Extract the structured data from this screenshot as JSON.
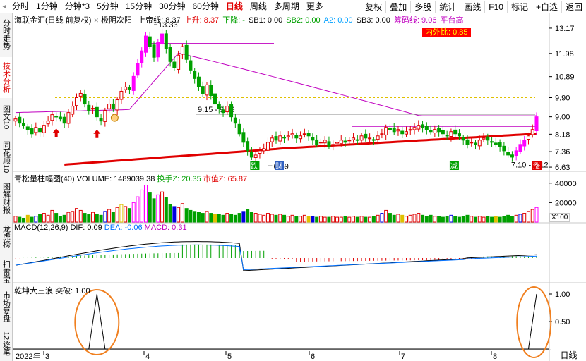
{
  "toolbar": {
    "left_items": [
      "分时",
      "1分钟",
      "分钟*3",
      "5分钟",
      "15分钟",
      "30分钟",
      "60分钟",
      "日线",
      "周线",
      "多周期",
      "更多"
    ],
    "active_item": "日线",
    "right_items": [
      "复权",
      "叠加",
      "多股",
      "统计",
      "画线",
      "F10",
      "标记",
      "+自选",
      "返回"
    ]
  },
  "left_tabs": [
    {
      "label": "分时走势",
      "active": false
    },
    {
      "label": "技术分析",
      "active": true
    },
    {
      "label": "图文10",
      "active": false
    },
    {
      "label": "同花顺10",
      "active": false
    },
    {
      "label": "图解财报",
      "active": false
    },
    {
      "label": "龙虎榜",
      "active": false
    },
    {
      "label": "扫雷宝",
      "active": false
    },
    {
      "label": "市场复盘",
      "active": false
    },
    {
      "label": "12逐笔",
      "active": false
    }
  ],
  "main_panel": {
    "title": "海联金汇(日线 前复权)",
    "indicator_name": "极阴次阳",
    "items": [
      {
        "label": "上帝线: 8.37",
        "color": "#000000"
      },
      {
        "label": "上升: 8.37",
        "color": "#e00000"
      },
      {
        "label": "下降: -",
        "color": "#00a000"
      },
      {
        "label": "SB1: 0.00",
        "color": "#000000"
      },
      {
        "label": "SB2: 0.00",
        "color": "#00a000"
      },
      {
        "label": "A2: 0.00",
        "color": "#00a0ff"
      },
      {
        "label": "SB3: 0.00",
        "color": "#000000"
      },
      {
        "label": "筹码线: 9.06",
        "color": "#c000c0"
      },
      {
        "label": "平台高",
        "color": "#c000c0"
      }
    ],
    "inout_label": "内外比: 0.85",
    "price_ticks": [
      "13.17",
      "11.98",
      "10.89",
      "9.90",
      "9.00",
      "8.18",
      "7.36",
      "6.63"
    ],
    "annotations": {
      "high": "13.33",
      "range1": "9.15 - 9.09",
      "low": "6.69",
      "range2": "7.10 - 7.12",
      "tag_die": "跌",
      "tag_cai": "财",
      "tag_jian": "减",
      "tag_zhang": "涨"
    }
  },
  "volume_panel": {
    "title": "青松量柱幅图(40)",
    "volume": "VOLUME: 1489039.38",
    "turnover": "换手Z: 20.35",
    "market_value": "市值Z: 65.87",
    "ticks": [
      "40000",
      "20000"
    ],
    "unit": "X100"
  },
  "macd_panel": {
    "title": "MACD(12,26,9)",
    "dif": "DIF: 0.09",
    "dea": "DEA: -0.06",
    "macd": "MACD: 0.31"
  },
  "wave_panel": {
    "title": "乾坤大三浪",
    "value": "突破: 1.00",
    "ticks": [
      "1.00",
      "0.50"
    ]
  },
  "x_axis": {
    "labels": [
      "2022年",
      "3",
      "4",
      "5",
      "6",
      "7",
      "8"
    ]
  },
  "bottom_right": "日线",
  "chart_data": {
    "type": "candlestick",
    "title": "海联金汇(日线 前复权)",
    "y_range": [
      6.5,
      13.4
    ],
    "y_ticks": [
      13.17,
      11.98,
      10.89,
      9.9,
      9.0,
      8.18,
      7.36,
      6.63
    ],
    "x_labels": [
      "2022年",
      "3",
      "4",
      "5",
      "6",
      "7",
      "8"
    ],
    "marked_high": 13.33,
    "marked_low": 6.69,
    "closes": [
      8.9,
      8.7,
      8.6,
      8.4,
      8.2,
      8.5,
      8.3,
      8.6,
      8.8,
      9.1,
      9.0,
      8.9,
      8.7,
      9.2,
      9.5,
      9.9,
      10.1,
      9.6,
      9.3,
      9.4,
      9.0,
      8.8,
      9.3,
      9.6,
      9.4,
      9.8,
      10.2,
      10.4,
      10.3,
      10.9,
      11.5,
      12.1,
      12.8,
      12.3,
      11.8,
      12.5,
      12.9,
      12.2,
      11.6,
      11.3,
      11.9,
      12.3,
      11.7,
      11.2,
      10.8,
      10.4,
      10.1,
      10.5,
      10.0,
      9.6,
      9.4,
      9.2,
      9.5,
      9.0,
      8.7,
      8.2,
      7.8,
      7.4,
      7.1,
      7.2,
      7.4,
      7.5,
      7.8,
      8.0,
      7.9,
      8.1,
      8.0,
      8.1,
      8.2,
      8.0,
      8.1,
      8.2,
      8.1,
      7.9,
      7.7,
      7.8,
      7.9,
      7.6,
      7.7,
      7.8,
      7.9,
      7.8,
      7.9,
      8.0,
      7.9,
      8.1,
      8.0,
      8.0,
      7.9,
      8.1,
      8.2,
      8.5,
      8.4,
      8.3,
      8.4,
      8.2,
      8.3,
      8.4,
      8.5,
      8.6,
      8.5,
      8.4,
      8.3,
      8.4,
      8.3,
      8.2,
      8.1,
      8.3,
      8.2,
      8.1,
      7.9,
      7.7,
      7.8,
      7.7,
      7.9,
      8.0,
      7.9,
      7.8,
      7.7,
      7.6,
      7.4,
      7.2,
      7.1,
      7.4,
      7.7,
      7.9,
      8.1,
      8.4,
      9.0
    ],
    "volumes": [
      6,
      5,
      4,
      7,
      5,
      6,
      8,
      9,
      7,
      12,
      9,
      6,
      7,
      10,
      11,
      14,
      12,
      9,
      8,
      10,
      8,
      7,
      11,
      13,
      10,
      15,
      18,
      16,
      14,
      20,
      26,
      33,
      38,
      30,
      24,
      28,
      31,
      25,
      18,
      16,
      15,
      19,
      14,
      12,
      11,
      10,
      9,
      11,
      9,
      8,
      8,
      7,
      9,
      8,
      7,
      9,
      11,
      13,
      10,
      9,
      8,
      7,
      9,
      8,
      7,
      8,
      7,
      6,
      7,
      6,
      6,
      7,
      6,
      6,
      5,
      6,
      5,
      5,
      6,
      5,
      5,
      6,
      5,
      6,
      5,
      6,
      5,
      5,
      6,
      7,
      9,
      12,
      9,
      7,
      8,
      7,
      6,
      7,
      8,
      9,
      7,
      6,
      7,
      6,
      6,
      5,
      6,
      7,
      6,
      5,
      6,
      7,
      6,
      5,
      6,
      5,
      6,
      5,
      6,
      5,
      6,
      7,
      6,
      7,
      8,
      9,
      11,
      13,
      15
    ]
  }
}
